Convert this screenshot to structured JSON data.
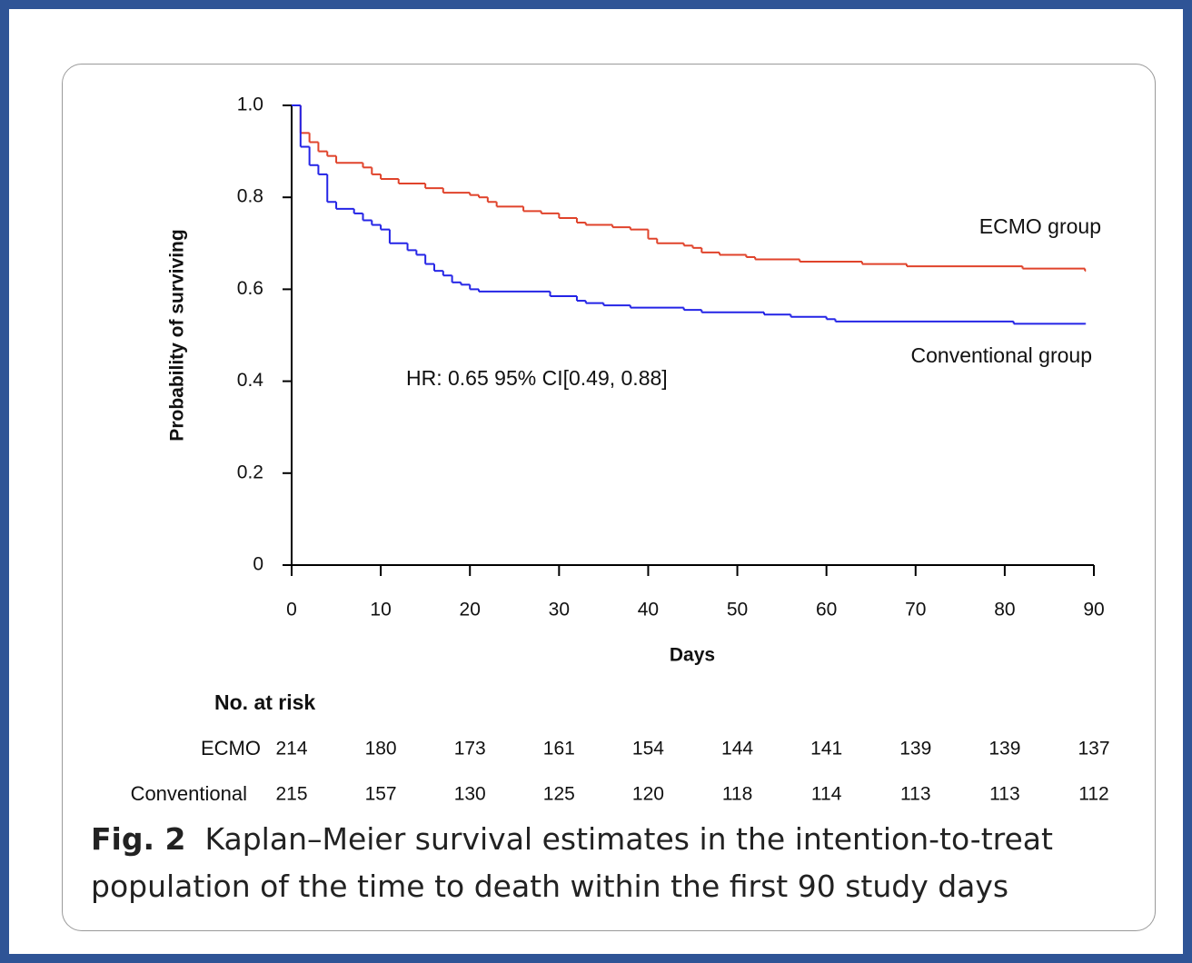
{
  "chart_data": {
    "type": "step",
    "x_label": "Days",
    "y_label": "Probability of surviving",
    "xlim": [
      0,
      90
    ],
    "ylim": [
      0,
      1
    ],
    "xticks": [
      0,
      10,
      20,
      30,
      40,
      50,
      60,
      70,
      80,
      90
    ],
    "yticks": [
      0,
      0.2,
      0.4,
      0.6,
      0.8,
      {
        "value": 1,
        "label": "1.0"
      }
    ],
    "series": [
      {
        "name": "ECMO group",
        "color": "#e0432b",
        "x": [
          0,
          1,
          2,
          3,
          4,
          5,
          8,
          9,
          10,
          12,
          15,
          17,
          20,
          21,
          22,
          23,
          26,
          28,
          30,
          32,
          33,
          36,
          38,
          40,
          41,
          44,
          45,
          46,
          48,
          51,
          52,
          57,
          64,
          69,
          82,
          89
        ],
        "values": [
          1.0,
          0.94,
          0.92,
          0.9,
          0.89,
          0.875,
          0.865,
          0.85,
          0.84,
          0.83,
          0.82,
          0.81,
          0.805,
          0.8,
          0.79,
          0.78,
          0.77,
          0.765,
          0.755,
          0.745,
          0.74,
          0.735,
          0.73,
          0.71,
          0.7,
          0.695,
          0.69,
          0.68,
          0.675,
          0.67,
          0.665,
          0.66,
          0.655,
          0.65,
          0.645,
          0.64
        ]
      },
      {
        "name": "Conventional group",
        "color": "#2424e6",
        "x": [
          0,
          1,
          2,
          3,
          4,
          5,
          7,
          8,
          9,
          10,
          11,
          13,
          14,
          15,
          16,
          17,
          18,
          19,
          20,
          21,
          29,
          32,
          33,
          35,
          38,
          44,
          46,
          53,
          56,
          60,
          61,
          81,
          89
        ],
        "values": [
          1.0,
          0.91,
          0.87,
          0.85,
          0.79,
          0.775,
          0.765,
          0.75,
          0.74,
          0.73,
          0.7,
          0.685,
          0.675,
          0.655,
          0.64,
          0.63,
          0.615,
          0.61,
          0.6,
          0.595,
          0.585,
          0.575,
          0.57,
          0.565,
          0.56,
          0.555,
          0.55,
          0.545,
          0.54,
          0.535,
          0.53,
          0.525,
          0.525
        ]
      }
    ],
    "annotations": [
      "ECMO group",
      "Conventional group",
      "HR: 0.65 95% CI[0.49, 0.88]"
    ],
    "risk_table": {
      "title": "No. at risk",
      "rows": [
        {
          "label": "ECMO",
          "values": [
            214,
            180,
            173,
            161,
            154,
            144,
            141,
            139,
            139,
            137
          ]
        },
        {
          "label": "Conventional",
          "values": [
            215,
            157,
            130,
            125,
            120,
            118,
            114,
            113,
            113,
            112
          ]
        }
      ]
    },
    "caption": {
      "label": "Fig. 2",
      "text": "Kaplan–Meier survival estimates in the intention-to-treat population of the time to death within the first 90 study days"
    }
  }
}
